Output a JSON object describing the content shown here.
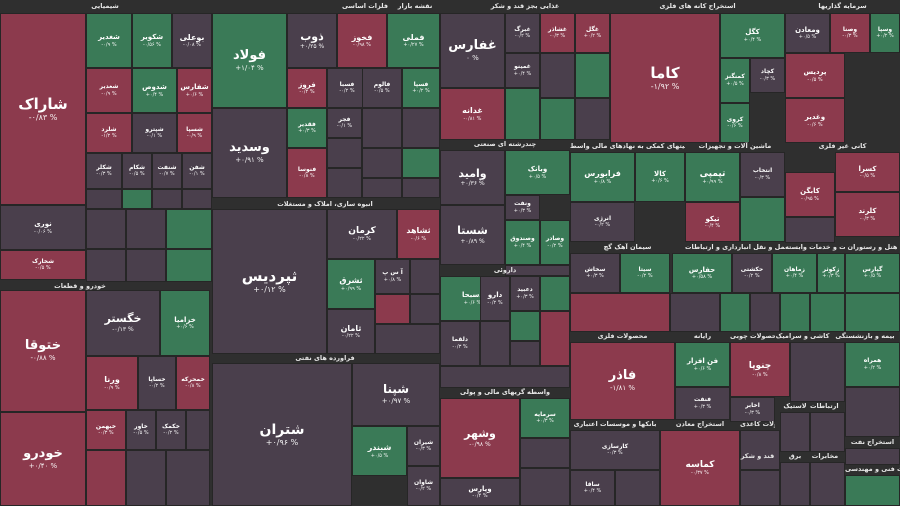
{
  "chart_data": {
    "type": "heatmap",
    "title": "نقشه بازار",
    "sectors": [
      {
        "name": "شیمیایی",
        "tiles": [
          {
            "name": "شاراک",
            "change": "-۰/۸۳ %",
            "dir": "dn"
          },
          {
            "name": "نوری",
            "change": "-۰/۰۶ %",
            "dir": "nt"
          },
          {
            "name": "شخارک",
            "change": "",
            "dir": "dn"
          },
          {
            "name": "بوعلی",
            "change": "-۰/۰۸ %",
            "dir": "nt"
          },
          {
            "name": "شکویر",
            "change": "-۰/۵۶ %",
            "dir": "up"
          },
          {
            "name": "شغدیر",
            "change": "",
            "dir": "dn"
          },
          {
            "name": "شغدیر",
            "change": "",
            "dir": "dn"
          },
          {
            "name": "شدوص",
            "change": "",
            "dir": "up"
          },
          {
            "name": "شفارس",
            "change": "",
            "dir": "up"
          },
          {
            "name": "شلرد",
            "change": "",
            "dir": "dn"
          },
          {
            "name": "شپترو",
            "change": "",
            "dir": "nt"
          },
          {
            "name": "شسپا",
            "change": "",
            "dir": "dn"
          }
        ]
      },
      {
        "name": "خودرو و قطعات",
        "tiles": [
          {
            "name": "ختوقا",
            "change": "-۰/۸۸ %",
            "dir": "dn"
          },
          {
            "name": "خودرو",
            "change": "+۰/۴۰ %",
            "dir": "dn"
          },
          {
            "name": "خگستر",
            "change": "-۰/۱۳ %",
            "dir": "nt"
          },
          {
            "name": "خزامیا",
            "change": "",
            "dir": "up"
          },
          {
            "name": "ورنا",
            "change": "",
            "dir": "dn"
          },
          {
            "name": "خساپا",
            "change": "",
            "dir": "nt"
          },
          {
            "name": "خمحرکه",
            "change": "",
            "dir": "dn"
          }
        ]
      },
      {
        "name": "فلزات اساسی",
        "tiles": [
          {
            "name": "فولاد",
            "change": "+۱/۰۴ %",
            "dir": "up"
          },
          {
            "name": "وسدید",
            "change": "+۰/۹۱ %",
            "dir": "nt"
          },
          {
            "name": "ذوب",
            "change": "+۰/۲۵ %",
            "dir": "nt"
          },
          {
            "name": "فخوز",
            "change": "",
            "dir": "dn"
          },
          {
            "name": "فملی",
            "change": "",
            "dir": "up"
          },
          {
            "name": "فروز",
            "change": "",
            "dir": "dn"
          },
          {
            "name": "فسبا",
            "change": "",
            "dir": "nt"
          },
          {
            "name": "فقدیر",
            "change": "",
            "dir": "up"
          },
          {
            "name": "فنوسا",
            "change": "",
            "dir": "dn"
          }
        ]
      },
      {
        "name": "انبوه سازی، املاک و مستغلات",
        "tiles": [
          {
            "name": "ثپردیس",
            "change": "+۰/۱۲ %",
            "dir": "nt"
          },
          {
            "name": "کرمان",
            "change": "",
            "dir": "nt"
          },
          {
            "name": "ثشاهد",
            "change": "",
            "dir": "dn"
          },
          {
            "name": "ثشرق",
            "change": "",
            "dir": "up"
          },
          {
            "name": "ثامان",
            "change": "",
            "dir": "nt"
          }
        ]
      },
      {
        "name": "فراورده های نفتی",
        "tiles": [
          {
            "name": "شتران",
            "change": "+۰/۹۶ %",
            "dir": "nt"
          },
          {
            "name": "شپنا",
            "change": "+۰/۹۷ %",
            "dir": "nt"
          },
          {
            "name": "شبندر",
            "change": "",
            "dir": "up"
          }
        ]
      },
      {
        "name": "غذایی بجز قند و شکر",
        "tiles": [
          {
            "name": "غفارس",
            "change": "۰ %",
            "dir": "nt"
          },
          {
            "name": "غدانه",
            "change": "",
            "dir": "dn"
          },
          {
            "name": "غبرگ",
            "change": "",
            "dir": "dn"
          },
          {
            "name": "غشاذر",
            "change": "",
            "dir": "dn"
          }
        ]
      },
      {
        "name": "چندرشته ای صنعتی",
        "tiles": [
          {
            "name": "وامید",
            "change": "+۰/۳۶ %",
            "dir": "nt"
          },
          {
            "name": "شستا",
            "change": "+۰/۸۹ %",
            "dir": "nt"
          },
          {
            "name": "وبانک",
            "change": "",
            "dir": "up"
          },
          {
            "name": "وصندوق",
            "change": "",
            "dir": "up"
          }
        ]
      },
      {
        "name": "داروئی",
        "tiles": [
          {
            "name": "دسبحا",
            "change": "",
            "dir": "up"
          },
          {
            "name": "دارو",
            "change": "",
            "dir": "nt"
          },
          {
            "name": "دلقما",
            "change": "",
            "dir": "nt"
          }
        ]
      },
      {
        "name": "واسطه گریهای مالی و پولی",
        "tiles": [
          {
            "name": "وشهر",
            "change": "-۰/۹۸ %",
            "dir": "dn"
          },
          {
            "name": "وپارس",
            "change": "",
            "dir": "nt"
          },
          {
            "name": "سرمایه",
            "change": "",
            "dir": "up"
          }
        ]
      },
      {
        "name": "استخراج کانه های فلزی",
        "tiles": [
          {
            "name": "کاما",
            "change": "-۱/۹۲ %",
            "dir": "dn"
          },
          {
            "name": "کگل",
            "change": "",
            "dir": "up"
          },
          {
            "name": "کچاد",
            "change": "",
            "dir": "dn"
          },
          {
            "name": "کرمان",
            "change": "",
            "dir": "up"
          }
        ]
      },
      {
        "name": "سرمایه گذاریها",
        "tiles": [
          {
            "name": "ومعادن",
            "change": "",
            "dir": "up"
          },
          {
            "name": "وصنا",
            "change": "",
            "dir": "dn"
          },
          {
            "name": "وسپا",
            "change": "",
            "dir": "up"
          },
          {
            "name": "پردیس",
            "change": "",
            "dir": "dn"
          },
          {
            "name": "وغدیر",
            "change": "",
            "dir": "dn"
          }
        ]
      },
      {
        "name": "فعالیتهای کمکی به نهادهای مالی واسط",
        "tiles": [
          {
            "name": "فرابورس",
            "change": "",
            "dir": "up"
          },
          {
            "name": "کالا",
            "change": "",
            "dir": "up"
          },
          {
            "name": "انرژی",
            "change": "",
            "dir": "nt"
          }
        ]
      },
      {
        "name": "ماشین آلات و تجهیزات",
        "tiles": [
          {
            "name": "تپمپی",
            "change": "+۰/۹۹ %",
            "dir": "up"
          },
          {
            "name": "تیکو",
            "change": "",
            "dir": "dn"
          },
          {
            "name": "انتخاب",
            "change": "",
            "dir": "dn"
          }
        ]
      },
      {
        "name": "کاشی و سرامیک",
        "tiles": []
      },
      {
        "name": "کانی غیر فلزی",
        "tiles": [
          {
            "name": "کسرا",
            "change": "",
            "dir": "dn"
          },
          {
            "name": "کابگن",
            "change": "",
            "dir": "dn"
          },
          {
            "name": "کلرند",
            "change": "",
            "dir": "dn"
          }
        ]
      },
      {
        "name": "سیمان آهک گچ",
        "tiles": [
          {
            "name": "سخاش",
            "change": "",
            "dir": "up"
          },
          {
            "name": "سیتا",
            "change": "",
            "dir": "dn"
          }
        ]
      },
      {
        "name": "حمل و نقل انبارداری و ارتباطات",
        "tiles": [
          {
            "name": "حفارس",
            "change": "+۰/۵۸ %",
            "dir": "up"
          },
          {
            "name": "حکشتی",
            "change": "",
            "dir": "nt"
          }
        ]
      },
      {
        "name": "زراعت و خدمات وابسته",
        "tiles": [
          {
            "name": "زماهان",
            "change": "",
            "dir": "up"
          },
          {
            "name": "زکوثر",
            "change": "",
            "dir": "up"
          }
        ]
      },
      {
        "name": "هتل و رستوران",
        "tiles": [
          {
            "name": "گپارس",
            "change": "",
            "dir": "up"
          }
        ]
      },
      {
        "name": "محصولات فلزی",
        "tiles": [
          {
            "name": "فاذر",
            "change": "-۱/۸۱ %",
            "dir": "dn"
          },
          {
            "name": "فن افزار",
            "change": "",
            "dir": "up"
          },
          {
            "name": "فنفت",
            "change": "",
            "dir": "up"
          }
        ]
      },
      {
        "name": "رایانه",
        "tiles": []
      },
      {
        "name": "محصولات چوبی",
        "tiles": [
          {
            "name": "چنوپا",
            "change": "",
            "dir": "dn"
          }
        ]
      },
      {
        "name": "لاستیک",
        "tiles": []
      },
      {
        "name": "اطلاعات و ارتباطات",
        "tiles": [
          {
            "name": "اخابر",
            "change": "",
            "dir": "dn"
          },
          {
            "name": "همراه",
            "change": "",
            "dir": "up"
          }
        ]
      },
      {
        "name": "بیمه و بازنشستگی",
        "tiles": []
      },
      {
        "name": "بانکها و موسسات اعتباری",
        "tiles": []
      },
      {
        "name": "استخراج معادن",
        "tiles": [
          {
            "name": "کماسه",
            "change": "-۰/۳۷ %",
            "dir": "dn"
          }
        ]
      },
      {
        "name": "محصولات کاغذی",
        "tiles": []
      },
      {
        "name": "قند و شکر",
        "tiles": []
      },
      {
        "name": "برق",
        "tiles": []
      },
      {
        "name": "مخابرات",
        "tiles": []
      },
      {
        "name": "استخراج نفت",
        "tiles": []
      },
      {
        "name": "خدمات فنی و مهندسی",
        "tiles": []
      }
    ]
  },
  "tiles": {
    "sharak": {
      "name": "شاراک",
      "change": "-۰/۸۳ %"
    },
    "noori": {
      "name": "نوری",
      "change": "-۰/۰۶ %"
    },
    "shkhark": {
      "name": "شخارک",
      "change": "-۰/۵ %"
    },
    "bouali": {
      "name": "بوعلی",
      "change": "-۰/۰۸ %"
    },
    "shkovir": {
      "name": "شکویر",
      "change": "-۰/۵۶ %"
    },
    "shgadir": {
      "name": "شغدیر",
      "change": "-۰/۹ %"
    },
    "shdoos": {
      "name": "شدوص",
      "change": "+۰/۴ %"
    },
    "shfars": {
      "name": "شفارس",
      "change": "+۰/۶ %"
    },
    "shlard": {
      "name": "شلرد",
      "change": "-۱/۲ %"
    },
    "shpetro": {
      "name": "شپترو",
      "change": "-۰/۱ %"
    },
    "shspa": {
      "name": "شسپا",
      "change": "-۰/۹ %"
    },
    "shkalar": {
      "name": "شکلر",
      "change": "-۰/۳ %"
    },
    "shekam": {
      "name": "شکام",
      "change": "-۰/۵ %"
    },
    "shahran": {
      "name": "شنفت",
      "change": "-۰/۷ %"
    },
    "shfan": {
      "name": "شفن",
      "change": "-۰/۱ %"
    },
    "khotoga": {
      "name": "ختوقا",
      "change": "-۰/۸۸ %"
    },
    "khodro": {
      "name": "خودرو",
      "change": "+۰/۴۰ %"
    },
    "khgostar": {
      "name": "خگستر",
      "change": "-۰/۱۳ %"
    },
    "khzamia": {
      "name": "خزامیا",
      "change": "+۰/۶ %"
    },
    "verna": {
      "name": "ورنا",
      "change": "-۰/۹ %"
    },
    "khsapa": {
      "name": "خساپا",
      "change": "-۰/۲ %"
    },
    "khmoharreke": {
      "name": "خمحرکه",
      "change": "-۰/۸ %"
    },
    "khbahman": {
      "name": "خبهمن",
      "change": "-۰/۳ %"
    },
    "khzar": {
      "name": "خاور",
      "change": "-۰/۵ %"
    },
    "khkaman": {
      "name": "خکمک",
      "change": "-۰/۲ %"
    },
    "folad": {
      "name": "فولاد",
      "change": "+۱/۰۴ %"
    },
    "vsadid": {
      "name": "وسدید",
      "change": "+۰/۹۱ %"
    },
    "zob": {
      "name": "ذوب",
      "change": "+۰/۲۵ %"
    },
    "fkhoz": {
      "name": "فخوز",
      "change": "-۰/۹۸ %"
    },
    "fmeli": {
      "name": "فملی",
      "change": "+۰/۲۷ %"
    },
    "frooz": {
      "name": "فروز",
      "change": "-۰/۴ %"
    },
    "fsaba": {
      "name": "فسبا",
      "change": "-۰/۲ %"
    },
    "fqadir": {
      "name": "فقدیر",
      "change": "+۰/۳ %"
    },
    "fnoosa": {
      "name": "فنوسا",
      "change": "-۰/۸ %"
    },
    "fjar": {
      "name": "فجر",
      "change": "-۰/۱ %"
    },
    "falum": {
      "name": "فالوم",
      "change": "-۰/۵ %"
    },
    "fsapa": {
      "name": "فسپا",
      "change": "+۰/۲ %"
    },
    "thpardis": {
      "name": "ثپردیس",
      "change": "+۰/۱۲ %"
    },
    "kerman": {
      "name": "کرمان",
      "change": "-۰/۲۲ %"
    },
    "thshahed": {
      "name": "ثشاهد",
      "change": "-۰/۶ %"
    },
    "thshargh": {
      "name": "ثشرق",
      "change": "+۰/۹۹ %"
    },
    "thaman": {
      "name": "ثامان",
      "change": "-۰/۲۲ %"
    },
    "asprey": {
      "name": "آ س پ",
      "change": "+۰/۸ %"
    },
    "shtran": {
      "name": "شتران",
      "change": "+۰/۹۶ %"
    },
    "shpna": {
      "name": "شپنا",
      "change": "+۰/۹۷ %"
    },
    "shbandar": {
      "name": "شبندر",
      "change": "+۰/۵ %"
    },
    "shiran": {
      "name": "شیران",
      "change": "-۰/۳ %"
    },
    "shavan": {
      "name": "شاوان",
      "change": "-۰/۲ %"
    },
    "ghfars": {
      "name": "غفارس",
      "change": "۰ %"
    },
    "ghdane": {
      "name": "غدانه",
      "change": "-۰/۸۱ %"
    },
    "ghbarg": {
      "name": "غبرگ",
      "change": "-۰/۲ %"
    },
    "ghshazar": {
      "name": "غشاذر",
      "change": "-۰/۳ %"
    },
    "ghgol": {
      "name": "غگل",
      "change": "+۰/۲ %"
    },
    "ghmino": {
      "name": "غمینو",
      "change": "+۰/۴ %"
    },
    "vamid": {
      "name": "وامید",
      "change": "+۰/۳۶ %"
    },
    "shsta": {
      "name": "شستا",
      "change": "+۰/۸۹ %"
    },
    "vbank": {
      "name": "وبانک",
      "change": "+۰/۵ %"
    },
    "vsandogh": {
      "name": "وصندوق",
      "change": "+۰/۴ %"
    },
    "vsaderat": {
      "name": "وصادر",
      "change": "-۰/۲ %"
    },
    "vnaft": {
      "name": "ونفت",
      "change": "+۰/۳ %"
    },
    "dsobha": {
      "name": "دسبحا",
      "change": "+۰/۶ %"
    },
    "daroo": {
      "name": "دارو",
      "change": "-۰/۲ %"
    },
    "dloqma": {
      "name": "دلقما",
      "change": "-۰/۳ %"
    },
    "dabid": {
      "name": "دعبید",
      "change": "+۰/۳ %"
    },
    "vshahr": {
      "name": "وشهر",
      "change": "-۰/۹۸ %"
    },
    "vpars": {
      "name": "وپارس",
      "change": "-۰/۴ %"
    },
    "sarmaye": {
      "name": "سرمایه",
      "change": "+۰/۳ %"
    },
    "kama": {
      "name": "کاما",
      "change": "-۱/۹۲ %"
    },
    "kgol": {
      "name": "کگل",
      "change": "+۰/۴ %"
    },
    "kchad": {
      "name": "کچاد",
      "change": "-۰/۳ %"
    },
    "kmangan": {
      "name": "کمنگنز",
      "change": "+۰/۵ %"
    },
    "kroy": {
      "name": "کروی",
      "change": "-۰/۶ %"
    },
    "vmaaden": {
      "name": "ومعادن",
      "change": "+۰/۵ %"
    },
    "vsana": {
      "name": "وصنا",
      "change": "-۰/۳ %"
    },
    "vspa": {
      "name": "وسپا",
      "change": "+۰/۲ %"
    },
    "pardis": {
      "name": "پردیس",
      "change": "-۰/۵ %"
    },
    "vghadir": {
      "name": "وغدیر",
      "change": "-۰/۶ %"
    },
    "frabourse": {
      "name": "فرابورس",
      "change": "+۰/۸ %"
    },
    "kala": {
      "name": "کالا",
      "change": "+۰/۶ %"
    },
    "energy": {
      "name": "انرژی",
      "change": "-۰/۲ %"
    },
    "tpompi": {
      "name": "تپمپی",
      "change": "+۰/۹۹ %"
    },
    "tiko": {
      "name": "تیکو",
      "change": "-۰/۴ %"
    },
    "entekhab": {
      "name": "انتخاب",
      "change": "-۰/۳ %"
    },
    "ksra": {
      "name": "کسرا",
      "change": "-۰/۵ %"
    },
    "kabgen": {
      "name": "کابگن",
      "change": "-۰/۹۵ %"
    },
    "klrand": {
      "name": "کلرند",
      "change": "-۰/۳ %"
    },
    "skhash": {
      "name": "سخاش",
      "change": "+۰/۳ %"
    },
    "sita": {
      "name": "سیتا",
      "change": "-۰/۲ %"
    },
    "hfars": {
      "name": "حفارس",
      "change": "+۰/۵۸ %"
    },
    "hkeshti": {
      "name": "حکشتی",
      "change": "-۰/۲ %"
    },
    "zmahan": {
      "name": "زماهان",
      "change": "+۰/۴ %"
    },
    "zkosar": {
      "name": "زکوثر",
      "change": "+۰/۳ %"
    },
    "gpars": {
      "name": "گپارس",
      "change": "+۰/۵ %"
    },
    "fazar": {
      "name": "فاذر",
      "change": "-۱/۸۱ %"
    },
    "fanafzar": {
      "name": "فن افزار",
      "change": "+۰/۶ %"
    },
    "fnaft": {
      "name": "فنفت",
      "change": "+۰/۳ %"
    },
    "chenopa": {
      "name": "چنوپا",
      "change": "-۰/۸ %"
    },
    "akhaber": {
      "name": "اخابر",
      "change": "-۰/۳ %"
    },
    "hamrah": {
      "name": "همراه",
      "change": "+۰/۲ %"
    },
    "kmase": {
      "name": "کماسه",
      "change": "-۰/۳۷ %"
    },
    "karsaz": {
      "name": "کارسازی",
      "change": "-۰/۳ %"
    },
    "saqa": {
      "name": "ساقا",
      "change": "+۰/۴ %"
    }
  }
}
